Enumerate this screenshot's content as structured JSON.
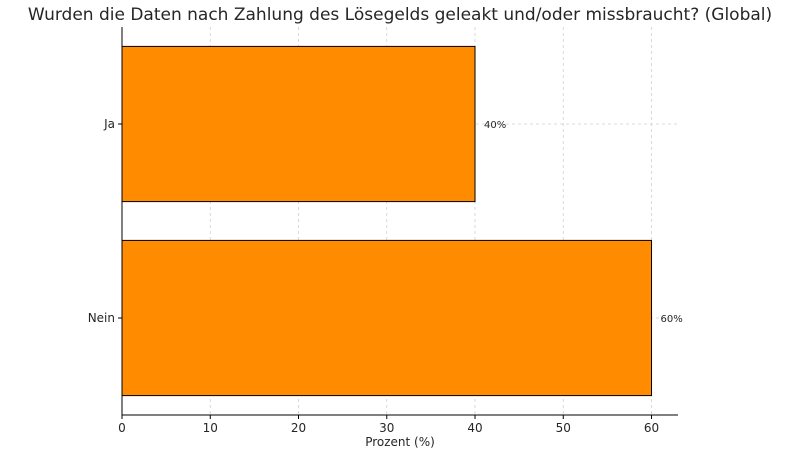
{
  "chart_data": {
    "type": "bar",
    "orientation": "horizontal",
    "title": "Wurden die Daten nach Zahlung des Lösegelds geleakt und/oder missbraucht? (Global)",
    "xlabel": "Prozent (%)",
    "ylabel": "",
    "categories": [
      "Ja",
      "Nein"
    ],
    "values": [
      40,
      60
    ],
    "data_labels": [
      "40%",
      "60%"
    ],
    "xlim": [
      0,
      63
    ],
    "xticks": [
      0,
      10,
      20,
      30,
      40,
      50,
      60
    ],
    "grid": true,
    "legend": "none",
    "bar_color": "#ff8c00",
    "bar_edge_color": "#000000"
  }
}
